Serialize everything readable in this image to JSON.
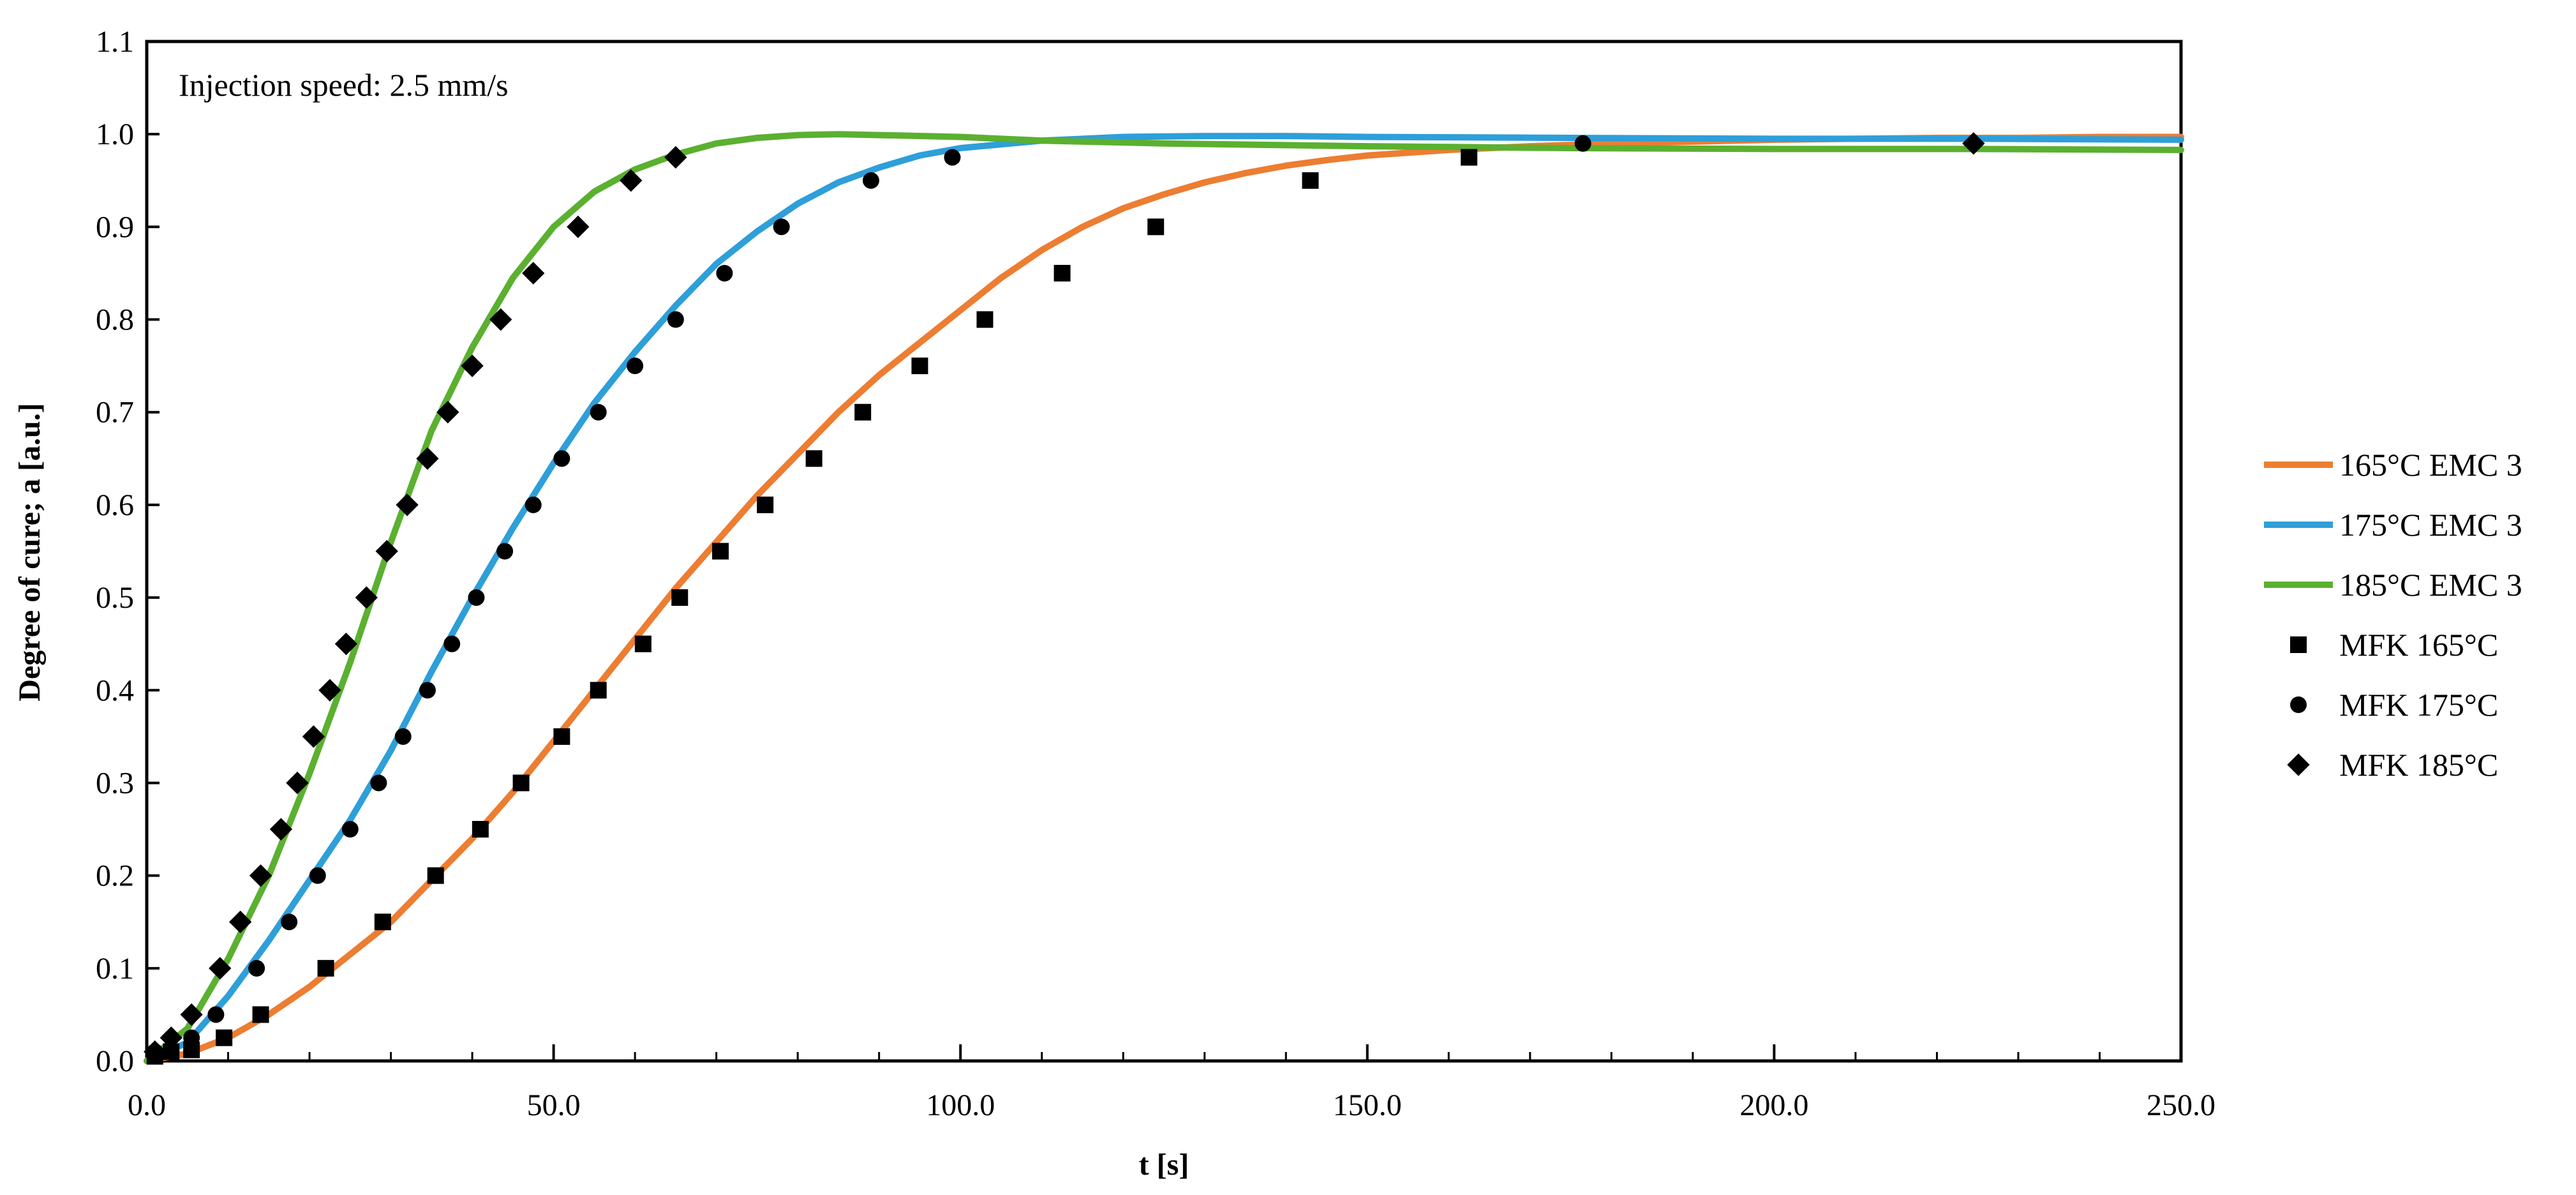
{
  "chart_data": {
    "type": "line",
    "title": "",
    "annotation": "Injection speed: 2.5 mm/s",
    "xlabel": "t [s]",
    "ylabel": "Degree of cure; a [a.u.]",
    "xlim": [
      0,
      250
    ],
    "ylim": [
      0,
      1.1
    ],
    "xticks": [
      "0.0",
      "50.0",
      "100.0",
      "150.0",
      "200.0",
      "250.0"
    ],
    "yticks": [
      "0.0",
      "0.1",
      "0.2",
      "0.3",
      "0.4",
      "0.5",
      "0.6",
      "0.7",
      "0.8",
      "0.9",
      "1.0",
      "1.1"
    ],
    "grid": false,
    "legend_position": "right",
    "series": [
      {
        "name": "165°C EMC 3",
        "kind": "line",
        "color": "#ED7D31",
        "x": [
          0,
          5,
          10,
          15,
          20,
          25,
          30,
          35,
          40,
          45,
          50,
          55,
          60,
          65,
          70,
          75,
          80,
          85,
          90,
          95,
          100,
          105,
          110,
          115,
          120,
          125,
          130,
          135,
          140,
          145,
          150,
          160,
          170,
          180,
          190,
          200,
          210,
          220,
          230,
          240,
          250
        ],
        "y": [
          0,
          0.008,
          0.025,
          0.05,
          0.08,
          0.115,
          0.15,
          0.195,
          0.24,
          0.29,
          0.345,
          0.4,
          0.455,
          0.51,
          0.56,
          0.61,
          0.655,
          0.7,
          0.74,
          0.775,
          0.81,
          0.845,
          0.875,
          0.9,
          0.92,
          0.935,
          0.948,
          0.958,
          0.966,
          0.972,
          0.977,
          0.983,
          0.987,
          0.99,
          0.992,
          0.994,
          0.995,
          0.996,
          0.996,
          0.997,
          0.997
        ]
      },
      {
        "name": "175°C EMC 3",
        "kind": "line",
        "color": "#2E9FD9",
        "x": [
          0,
          5,
          10,
          15,
          20,
          25,
          30,
          35,
          40,
          45,
          50,
          55,
          60,
          65,
          70,
          75,
          80,
          85,
          90,
          95,
          100,
          110,
          120,
          130,
          140,
          150,
          175,
          200,
          225,
          250
        ],
        "y": [
          0,
          0.02,
          0.07,
          0.13,
          0.195,
          0.26,
          0.335,
          0.42,
          0.5,
          0.575,
          0.645,
          0.71,
          0.765,
          0.815,
          0.86,
          0.895,
          0.925,
          0.948,
          0.964,
          0.977,
          0.985,
          0.993,
          0.997,
          0.998,
          0.998,
          0.997,
          0.996,
          0.995,
          0.995,
          0.994
        ]
      },
      {
        "name": "185°C EMC 3",
        "kind": "line",
        "color": "#5BB030",
        "x": [
          0,
          5,
          10,
          15,
          20,
          25,
          30,
          35,
          40,
          45,
          50,
          55,
          60,
          65,
          70,
          75,
          80,
          85,
          90,
          100,
          110,
          125,
          150,
          175,
          200,
          225,
          250
        ],
        "y": [
          0,
          0.035,
          0.11,
          0.2,
          0.31,
          0.43,
          0.56,
          0.68,
          0.77,
          0.845,
          0.9,
          0.938,
          0.962,
          0.978,
          0.99,
          0.996,
          0.999,
          1.0,
          0.999,
          0.997,
          0.993,
          0.99,
          0.987,
          0.985,
          0.984,
          0.984,
          0.983
        ]
      },
      {
        "name": "MFK 165°C",
        "kind": "scatter",
        "marker": "square",
        "color": "#000000",
        "x": [
          1,
          3,
          5.5,
          9.5,
          14,
          22,
          29,
          35.5,
          41,
          46,
          51,
          55.5,
          61,
          65.5,
          70.5,
          76,
          82,
          88,
          95,
          103,
          112.5,
          124,
          143,
          162.5
        ],
        "y": [
          0.005,
          0.01,
          0.012,
          0.025,
          0.05,
          0.1,
          0.15,
          0.2,
          0.25,
          0.3,
          0.35,
          0.4,
          0.45,
          0.5,
          0.55,
          0.6,
          0.65,
          0.7,
          0.75,
          0.8,
          0.85,
          0.9,
          0.95,
          0.975
        ]
      },
      {
        "name": "MFK 175°C",
        "kind": "scatter",
        "marker": "circle",
        "color": "#000000",
        "x": [
          1,
          3,
          5.5,
          8.5,
          13.5,
          17.5,
          21,
          25,
          28.5,
          31.5,
          34.5,
          37.5,
          40.5,
          44,
          47.5,
          51,
          55.5,
          60,
          65,
          71,
          78,
          89,
          99,
          176.5
        ],
        "y": [
          0.01,
          0.01,
          0.025,
          0.05,
          0.1,
          0.15,
          0.2,
          0.25,
          0.3,
          0.35,
          0.4,
          0.45,
          0.5,
          0.55,
          0.6,
          0.65,
          0.7,
          0.75,
          0.8,
          0.85,
          0.9,
          0.95,
          0.975,
          0.99
        ]
      },
      {
        "name": "MFK 185°C",
        "kind": "scatter",
        "marker": "diamond",
        "color": "#000000",
        "x": [
          1,
          3,
          5.5,
          9,
          11.5,
          14,
          16.5,
          18.5,
          20.5,
          22.5,
          24.5,
          27,
          29.5,
          32,
          34.5,
          37,
          40,
          43.5,
          47.5,
          53,
          59.5,
          65,
          224.5
        ],
        "y": [
          0.01,
          0.025,
          0.05,
          0.1,
          0.15,
          0.2,
          0.25,
          0.3,
          0.35,
          0.4,
          0.45,
          0.5,
          0.55,
          0.6,
          0.65,
          0.7,
          0.75,
          0.8,
          0.85,
          0.9,
          0.95,
          0.975,
          0.99
        ]
      }
    ]
  }
}
